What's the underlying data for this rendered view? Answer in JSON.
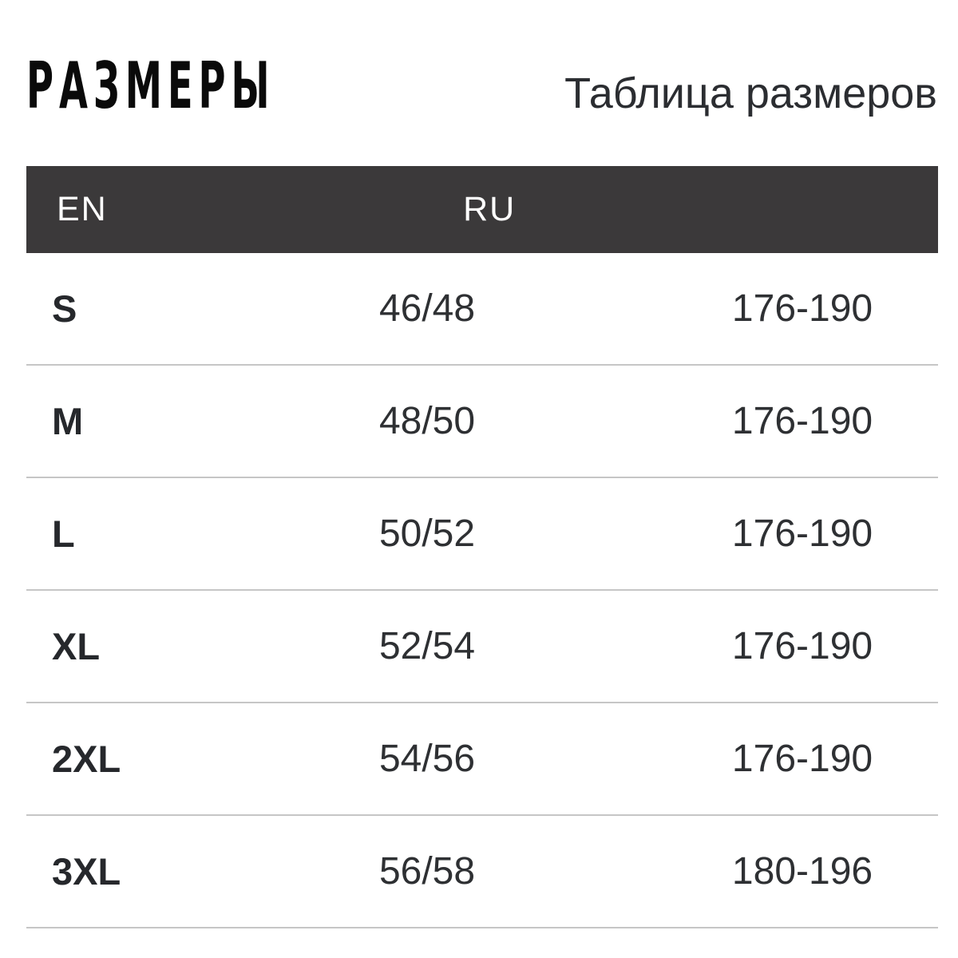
{
  "page": {
    "title": "РАЗМЕРЫ",
    "subtitle": "Таблица размеров"
  },
  "colors": {
    "header_bg": "#3b393a",
    "header_text": "#ffffff",
    "divider": "#c6c6c6",
    "body_text": "#2e3033",
    "title_text": "#0a0a0a"
  },
  "table": {
    "header": {
      "en": "EN",
      "ru": "RU"
    },
    "rows": [
      {
        "en": "S",
        "ru": "46/48",
        "height": "176-190"
      },
      {
        "en": "M",
        "ru": "48/50",
        "height": "176-190"
      },
      {
        "en": "L",
        "ru": "50/52",
        "height": "176-190"
      },
      {
        "en": "XL",
        "ru": "52/54",
        "height": "176-190"
      },
      {
        "en": "2XL",
        "ru": "54/56",
        "height": "176-190"
      },
      {
        "en": "3XL",
        "ru": "56/58",
        "height": "180-196"
      }
    ]
  },
  "chart_data": {
    "type": "table",
    "title": "РАЗМЕРЫ",
    "subtitle": "Таблица размеров",
    "columns": [
      "EN",
      "RU",
      ""
    ],
    "rows": [
      [
        "S",
        "46/48",
        "176-190"
      ],
      [
        "M",
        "48/50",
        "176-190"
      ],
      [
        "L",
        "50/52",
        "176-190"
      ],
      [
        "XL",
        "52/54",
        "176-190"
      ],
      [
        "2XL",
        "54/56",
        "176-190"
      ],
      [
        "3XL",
        "56/58",
        "180-196"
      ]
    ]
  }
}
